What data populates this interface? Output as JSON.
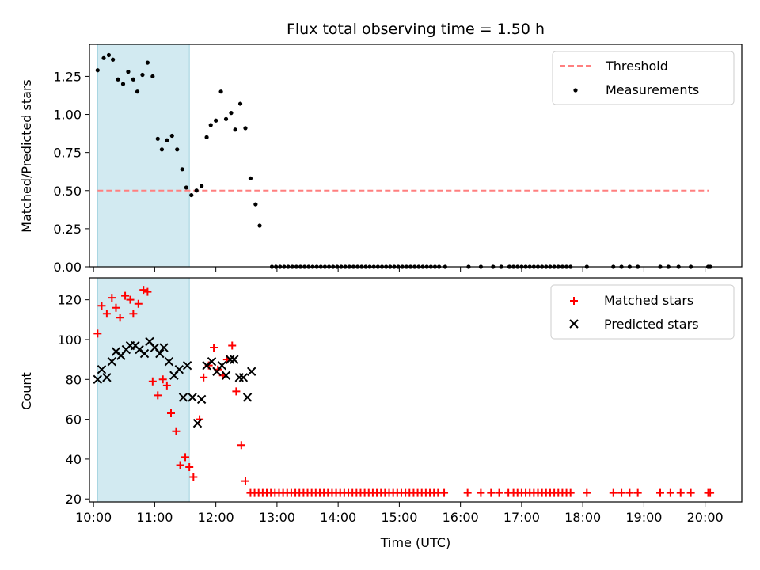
{
  "chart_data": [
    {
      "type": "scatter",
      "title": "Flux total observing time = 1.50 h",
      "xlabel": "",
      "ylabel": "Matched/Predicted stars",
      "xlim": [
        "09:56",
        "20:36"
      ],
      "ylim": [
        0,
        1.46
      ],
      "yticks": [
        "0.00",
        "0.25",
        "0.50",
        "0.75",
        "1.00",
        "1.25"
      ],
      "grid": false,
      "legend_placement": "top-right",
      "shaded_span": {
        "start": "10:04",
        "end": "11:34",
        "color": "#add8e6"
      },
      "threshold": {
        "name": "Threshold",
        "value": 0.5,
        "x_start": "10:04",
        "x_end": "20:04",
        "color": "#ff7f7f",
        "style": "dashed"
      },
      "series": [
        {
          "name": "Measurements",
          "color": "#000000",
          "marker": "dot",
          "points": [
            [
              "10:04",
              1.29
            ],
            [
              "10:10",
              1.37
            ],
            [
              "10:15",
              1.39
            ],
            [
              "10:19",
              1.36
            ],
            [
              "10:24",
              1.23
            ],
            [
              "10:29",
              1.2
            ],
            [
              "10:34",
              1.28
            ],
            [
              "10:39",
              1.23
            ],
            [
              "10:43",
              1.15
            ],
            [
              "10:48",
              1.26
            ],
            [
              "10:53",
              1.34
            ],
            [
              "10:58",
              1.25
            ],
            [
              "11:03",
              0.84
            ],
            [
              "11:07",
              0.77
            ],
            [
              "11:12",
              0.83
            ],
            [
              "11:17",
              0.86
            ],
            [
              "11:22",
              0.77
            ],
            [
              "11:27",
              0.64
            ],
            [
              "11:31",
              0.52
            ],
            [
              "11:36",
              0.47
            ],
            [
              "11:41",
              0.5
            ],
            [
              "11:46",
              0.53
            ],
            [
              "11:51",
              0.85
            ],
            [
              "11:55",
              0.93
            ],
            [
              "12:00",
              0.96
            ],
            [
              "12:05",
              1.15
            ],
            [
              "12:10",
              0.97
            ],
            [
              "12:15",
              1.01
            ],
            [
              "12:19",
              0.9
            ],
            [
              "12:24",
              1.07
            ],
            [
              "12:29",
              0.91
            ],
            [
              "12:34",
              0.58
            ],
            [
              "12:39",
              0.41
            ],
            [
              "12:43",
              0.27
            ],
            [
              "12:55",
              0
            ],
            [
              "12:59",
              0
            ],
            [
              "13:03",
              0
            ],
            [
              "13:07",
              0
            ],
            [
              "13:11",
              0
            ],
            [
              "13:15",
              0
            ],
            [
              "13:19",
              0
            ],
            [
              "13:23",
              0
            ],
            [
              "13:27",
              0
            ],
            [
              "13:31",
              0
            ],
            [
              "13:35",
              0
            ],
            [
              "13:39",
              0
            ],
            [
              "13:43",
              0
            ],
            [
              "13:47",
              0
            ],
            [
              "13:51",
              0
            ],
            [
              "13:55",
              0
            ],
            [
              "13:59",
              0
            ],
            [
              "14:03",
              0
            ],
            [
              "14:07",
              0
            ],
            [
              "14:11",
              0
            ],
            [
              "14:15",
              0
            ],
            [
              "14:19",
              0
            ],
            [
              "14:23",
              0
            ],
            [
              "14:27",
              0
            ],
            [
              "14:31",
              0
            ],
            [
              "14:35",
              0
            ],
            [
              "14:39",
              0
            ],
            [
              "14:43",
              0
            ],
            [
              "14:47",
              0
            ],
            [
              "14:51",
              0
            ],
            [
              "14:55",
              0
            ],
            [
              "14:59",
              0
            ],
            [
              "15:03",
              0
            ],
            [
              "15:07",
              0
            ],
            [
              "15:11",
              0
            ],
            [
              "15:15",
              0
            ],
            [
              "15:19",
              0
            ],
            [
              "15:23",
              0
            ],
            [
              "15:27",
              0
            ],
            [
              "15:31",
              0
            ],
            [
              "15:35",
              0
            ],
            [
              "15:39",
              0
            ],
            [
              "15:45",
              0
            ],
            [
              "16:08",
              0
            ],
            [
              "16:20",
              0
            ],
            [
              "16:32",
              0
            ],
            [
              "16:40",
              0
            ],
            [
              "16:48",
              0
            ],
            [
              "16:52",
              0
            ],
            [
              "16:56",
              0
            ],
            [
              "17:00",
              0
            ],
            [
              "17:04",
              0
            ],
            [
              "17:08",
              0
            ],
            [
              "17:12",
              0
            ],
            [
              "17:16",
              0
            ],
            [
              "17:20",
              0
            ],
            [
              "17:24",
              0
            ],
            [
              "17:28",
              0
            ],
            [
              "17:32",
              0
            ],
            [
              "17:36",
              0
            ],
            [
              "17:40",
              0
            ],
            [
              "17:44",
              0
            ],
            [
              "17:48",
              0
            ],
            [
              "18:04",
              0
            ],
            [
              "18:30",
              0
            ],
            [
              "18:38",
              0
            ],
            [
              "18:46",
              0
            ],
            [
              "18:54",
              0
            ],
            [
              "19:16",
              0
            ],
            [
              "19:24",
              0
            ],
            [
              "19:34",
              0
            ],
            [
              "19:46",
              0
            ],
            [
              "20:03",
              0
            ],
            [
              "20:05",
              0
            ]
          ]
        }
      ]
    },
    {
      "type": "scatter",
      "title": "",
      "xlabel": "Time (UTC)",
      "ylabel": "Count",
      "xlim": [
        "09:56",
        "20:36"
      ],
      "ylim": [
        18.5,
        131
      ],
      "xticks": [
        "10:00",
        "11:00",
        "12:00",
        "13:00",
        "14:00",
        "15:00",
        "16:00",
        "17:00",
        "18:00",
        "19:00",
        "20:00"
      ],
      "yticks": [
        "20",
        "40",
        "60",
        "80",
        "100",
        "120"
      ],
      "grid": false,
      "legend_placement": "top-right",
      "shaded_span": {
        "start": "10:04",
        "end": "11:34",
        "color": "#add8e6"
      },
      "series": [
        {
          "name": "Matched stars",
          "color": "#ff0000",
          "marker": "plus",
          "points": [
            [
              "10:04",
              103
            ],
            [
              "10:08",
              117
            ],
            [
              "10:13",
              113
            ],
            [
              "10:18",
              121
            ],
            [
              "10:22",
              116
            ],
            [
              "10:26",
              111
            ],
            [
              "10:31",
              122
            ],
            [
              "10:36",
              120
            ],
            [
              "10:39",
              113
            ],
            [
              "10:44",
              118
            ],
            [
              "10:49",
              125
            ],
            [
              "10:53",
              124
            ],
            [
              "10:58",
              79
            ],
            [
              "11:03",
              72
            ],
            [
              "11:08",
              80
            ],
            [
              "11:12",
              77
            ],
            [
              "11:16",
              63
            ],
            [
              "11:21",
              54
            ],
            [
              "11:25",
              37
            ],
            [
              "11:30",
              41
            ],
            [
              "11:34",
              36
            ],
            [
              "11:38",
              31
            ],
            [
              "11:44",
              60
            ],
            [
              "11:48",
              81
            ],
            [
              "11:53",
              87
            ],
            [
              "11:58",
              96
            ],
            [
              "12:02",
              85
            ],
            [
              "12:07",
              82
            ],
            [
              "12:11",
              90
            ],
            [
              "12:16",
              97
            ],
            [
              "12:20",
              74
            ],
            [
              "12:25",
              47
            ],
            [
              "12:29",
              29
            ],
            [
              "12:34",
              23
            ],
            [
              "12:38",
              23
            ],
            [
              "12:42",
              23
            ],
            [
              "12:46",
              23
            ],
            [
              "12:50",
              23
            ],
            [
              "12:54",
              23
            ],
            [
              "12:58",
              23
            ],
            [
              "13:02",
              23
            ],
            [
              "13:06",
              23
            ],
            [
              "13:10",
              23
            ],
            [
              "13:14",
              23
            ],
            [
              "13:18",
              23
            ],
            [
              "13:22",
              23
            ],
            [
              "13:26",
              23
            ],
            [
              "13:30",
              23
            ],
            [
              "13:34",
              23
            ],
            [
              "13:38",
              23
            ],
            [
              "13:42",
              23
            ],
            [
              "13:46",
              23
            ],
            [
              "13:50",
              23
            ],
            [
              "13:54",
              23
            ],
            [
              "13:58",
              23
            ],
            [
              "14:02",
              23
            ],
            [
              "14:06",
              23
            ],
            [
              "14:10",
              23
            ],
            [
              "14:14",
              23
            ],
            [
              "14:18",
              23
            ],
            [
              "14:22",
              23
            ],
            [
              "14:26",
              23
            ],
            [
              "14:30",
              23
            ],
            [
              "14:34",
              23
            ],
            [
              "14:38",
              23
            ],
            [
              "14:42",
              23
            ],
            [
              "14:46",
              23
            ],
            [
              "14:50",
              23
            ],
            [
              "14:54",
              23
            ],
            [
              "14:58",
              23
            ],
            [
              "15:02",
              23
            ],
            [
              "15:06",
              23
            ],
            [
              "15:10",
              23
            ],
            [
              "15:14",
              23
            ],
            [
              "15:18",
              23
            ],
            [
              "15:22",
              23
            ],
            [
              "15:26",
              23
            ],
            [
              "15:30",
              23
            ],
            [
              "15:34",
              23
            ],
            [
              "15:38",
              23
            ],
            [
              "15:44",
              23
            ],
            [
              "16:07",
              23
            ],
            [
              "16:20",
              23
            ],
            [
              "16:30",
              23
            ],
            [
              "16:38",
              23
            ],
            [
              "16:47",
              23
            ],
            [
              "16:52",
              23
            ],
            [
              "16:56",
              23
            ],
            [
              "17:00",
              23
            ],
            [
              "17:04",
              23
            ],
            [
              "17:08",
              23
            ],
            [
              "17:12",
              23
            ],
            [
              "17:16",
              23
            ],
            [
              "17:20",
              23
            ],
            [
              "17:24",
              23
            ],
            [
              "17:28",
              23
            ],
            [
              "17:32",
              23
            ],
            [
              "17:36",
              23
            ],
            [
              "17:40",
              23
            ],
            [
              "17:44",
              23
            ],
            [
              "17:48",
              23
            ],
            [
              "18:04",
              23
            ],
            [
              "18:30",
              23
            ],
            [
              "18:38",
              23
            ],
            [
              "18:46",
              23
            ],
            [
              "18:54",
              23
            ],
            [
              "19:16",
              23
            ],
            [
              "19:26",
              23
            ],
            [
              "19:36",
              23
            ],
            [
              "19:46",
              23
            ],
            [
              "20:03",
              23
            ],
            [
              "20:05",
              23
            ]
          ]
        },
        {
          "name": "Predicted stars",
          "color": "#000000",
          "marker": "x",
          "points": [
            [
              "10:04",
              80
            ],
            [
              "10:08",
              85
            ],
            [
              "10:13",
              81
            ],
            [
              "10:18",
              89
            ],
            [
              "10:22",
              94
            ],
            [
              "10:27",
              92
            ],
            [
              "10:32",
              95
            ],
            [
              "10:36",
              97
            ],
            [
              "10:41",
              97
            ],
            [
              "10:45",
              95
            ],
            [
              "10:50",
              93
            ],
            [
              "10:55",
              99
            ],
            [
              "11:00",
              96
            ],
            [
              "11:05",
              93
            ],
            [
              "11:09",
              96
            ],
            [
              "11:14",
              89
            ],
            [
              "11:19",
              82
            ],
            [
              "11:24",
              85
            ],
            [
              "11:28",
              71
            ],
            [
              "11:32",
              87
            ],
            [
              "11:37",
              71
            ],
            [
              "11:42",
              58
            ],
            [
              "11:46",
              70
            ],
            [
              "11:51",
              87
            ],
            [
              "11:56",
              89
            ],
            [
              "12:01",
              84
            ],
            [
              "12:06",
              87
            ],
            [
              "12:10",
              82
            ],
            [
              "12:14",
              90
            ],
            [
              "12:18",
              90
            ],
            [
              "12:23",
              81
            ],
            [
              "12:27",
              81
            ],
            [
              "12:31",
              71
            ],
            [
              "12:35",
              84
            ]
          ]
        }
      ]
    }
  ]
}
